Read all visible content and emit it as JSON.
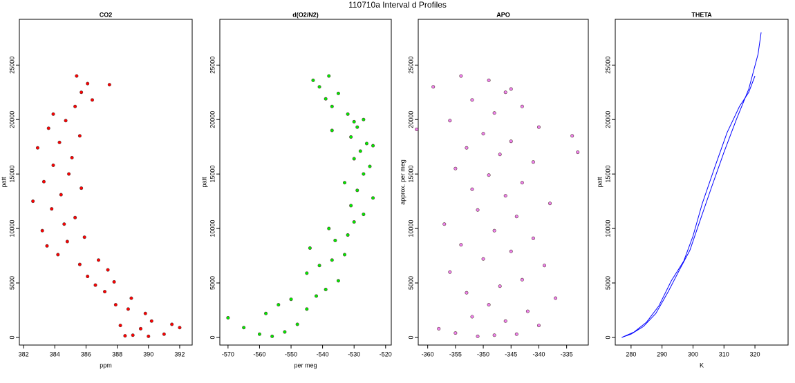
{
  "title": "110710a   Interval d Profiles",
  "chart_data": [
    {
      "type": "scatter",
      "title": "CO2",
      "x_label": "ppm",
      "y_label": "patt",
      "xlim": [
        381.73,
        392.8
      ],
      "ylim": [
        -700,
        29200
      ],
      "xticks": [
        382,
        384,
        386,
        388,
        390,
        392
      ],
      "yticks": [
        0,
        5000,
        10000,
        15000,
        20000,
        25000
      ],
      "series": [
        {
          "color": "#ff0000",
          "x": [
            390,
            389,
            391,
            388.5,
            389.5,
            391.5,
            390.2,
            388.2,
            392,
            389.8,
            388.7,
            387.9,
            388.9,
            387.2,
            386.6,
            387.8,
            386.1,
            387.4,
            385.6,
            386.8,
            384.2,
            383.5,
            384.8,
            385.9,
            383.2,
            384.6,
            385.3,
            383.8,
            382.6,
            384.4,
            385.7,
            383.3,
            384.9,
            383.9,
            385.1,
            382.9,
            384.3,
            385.6,
            383.6,
            384.7,
            383.9,
            385.3,
            386.4,
            385.7,
            386.1,
            385.4,
            387.5
          ],
          "values": [
            100,
            200,
            300,
            150,
            800,
            1200,
            1500,
            1100,
            900,
            2200,
            2600,
            3000,
            3600,
            4200,
            4800,
            5100,
            5600,
            6200,
            6700,
            7100,
            7600,
            8400,
            8800,
            9200,
            9800,
            10400,
            11000,
            11800,
            12500,
            13100,
            13700,
            14300,
            15000,
            15800,
            16500,
            17400,
            17900,
            18500,
            19200,
            19900,
            20500,
            21200,
            21800,
            22500,
            23300,
            24000,
            23200
          ]
        }
      ]
    },
    {
      "type": "scatter",
      "title": "d(O2/N2)",
      "x_label": "per meg",
      "y_label": "patt",
      "xlim": [
        -572.6,
        -518.2
      ],
      "ylim": [
        -700,
        29200
      ],
      "xticks": [
        -570,
        -560,
        -550,
        -540,
        -530,
        -520
      ],
      "yticks": [
        0,
        5000,
        10000,
        15000,
        20000,
        25000
      ],
      "series": [
        {
          "color": "#00ee00",
          "x": [
            -556,
            -560,
            -552,
            -565,
            -570,
            -548,
            -558,
            -545,
            -554,
            -550,
            -542,
            -539,
            -535,
            -545,
            -541,
            -537,
            -533,
            -544,
            -536,
            -532,
            -538,
            -530,
            -527,
            -531,
            -524,
            -529,
            -533,
            -527,
            -525,
            -530,
            -528,
            -526,
            -531,
            -524,
            -529,
            -527,
            -532,
            -530,
            -537,
            -539,
            -535,
            -541,
            -543,
            -538,
            -537
          ],
          "values": [
            100,
            300,
            500,
            900,
            1800,
            1200,
            2200,
            2600,
            3000,
            3500,
            3800,
            4400,
            5200,
            5900,
            6600,
            7100,
            7600,
            8200,
            8900,
            9400,
            10000,
            10600,
            11300,
            12100,
            12800,
            13500,
            14200,
            15000,
            15700,
            16400,
            17100,
            17800,
            18400,
            17600,
            19300,
            20000,
            20500,
            19800,
            21200,
            21900,
            22400,
            23000,
            23600,
            24000,
            19000
          ]
        }
      ]
    },
    {
      "type": "scatter",
      "title": "APO",
      "y_label": "approx. per meg",
      "xlim": [
        -361.7,
        -331.1
      ],
      "ylim": [
        -700,
        29200
      ],
      "xticks": [
        -360,
        -355,
        -350,
        -345,
        -340,
        -335
      ],
      "yticks": [
        0,
        5000,
        10000,
        15000,
        20000,
        25000
      ],
      "series": [
        {
          "color": "#ee82ee",
          "x": [
            -351,
            -348,
            -344,
            -355,
            -358,
            -340,
            -346,
            -352,
            -342,
            -349,
            -337,
            -353,
            -347,
            -343,
            -356,
            -339,
            -350,
            -345,
            -354,
            -341,
            -348,
            -357,
            -344,
            -351,
            -338,
            -346,
            -352,
            -343,
            -349,
            -355,
            -341,
            -347,
            -353,
            -345,
            -350,
            -340,
            -356,
            -348,
            -343,
            -352,
            -346,
            -359,
            -349,
            -354,
            -334,
            -345,
            -362,
            -333
          ],
          "values": [
            100,
            200,
            300,
            400,
            800,
            1100,
            1500,
            1900,
            2400,
            3000,
            3600,
            4100,
            4700,
            5300,
            6000,
            6600,
            7200,
            7900,
            8500,
            9100,
            9800,
            10400,
            11100,
            11700,
            12300,
            13000,
            13600,
            14200,
            14900,
            15500,
            16100,
            16800,
            17400,
            18000,
            18700,
            19300,
            19900,
            20600,
            21200,
            21800,
            22500,
            23000,
            23600,
            24000,
            18500,
            22800,
            19100,
            17000
          ]
        }
      ]
    },
    {
      "type": "line",
      "title": "THETA",
      "x_label": "K",
      "y_label": "patt",
      "xlim": [
        274.9,
        330.7
      ],
      "ylim": [
        -700,
        29200
      ],
      "xticks": [
        280,
        290,
        300,
        310,
        320
      ],
      "yticks": [
        0,
        5000,
        10000,
        15000,
        20000,
        25000
      ],
      "series": [
        {
          "color": "#0000ff",
          "x": [
            277,
            280,
            284,
            288,
            292,
            296,
            299,
            302,
            306,
            310,
            314,
            318,
            321,
            322
          ],
          "values": [
            0,
            300,
            1000,
            2200,
            4200,
            6400,
            8000,
            10500,
            13800,
            17000,
            20000,
            22800,
            26000,
            28000
          ]
        },
        {
          "color": "#0000ff",
          "x": [
            277,
            281,
            285,
            289,
            293,
            297,
            300,
            303,
            307,
            311,
            315,
            318,
            320
          ],
          "values": [
            0,
            500,
            1400,
            2900,
            5200,
            7000,
            9300,
            12300,
            15600,
            18800,
            21200,
            22500,
            24000
          ]
        }
      ]
    }
  ]
}
